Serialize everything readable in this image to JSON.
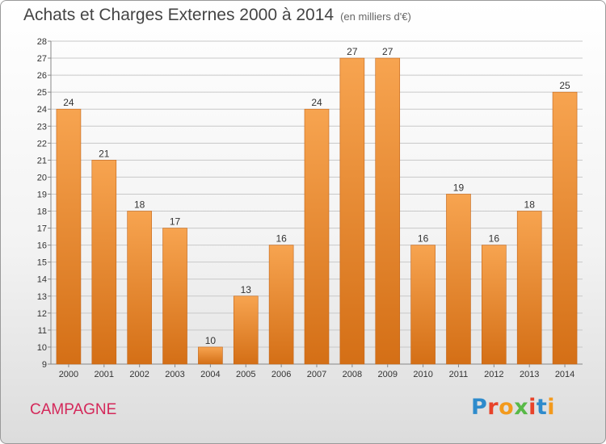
{
  "header": {
    "title": "Achats et Charges Externes 2000 à 2014",
    "unit_note": "(en milliers d'€)"
  },
  "footer": {
    "commune": "CAMPAGNE",
    "logo_text": "Proxiti",
    "logo_colors": [
      "#2e8bcc",
      "#e8432a",
      "#f39a1d",
      "#58b947",
      "#e8432a",
      "#2e8bcc",
      "#f39a1d"
    ]
  },
  "colors": {
    "bar_light": "#f7a450",
    "bar_dark": "#d46f16",
    "bar_stroke": "#c2651a",
    "grid": "#c8c8c8",
    "axis_text": "#333333",
    "commune_color": "#d4285a"
  },
  "chart_data": {
    "type": "bar",
    "categories": [
      "2000",
      "2001",
      "2002",
      "2003",
      "2004",
      "2005",
      "2006",
      "2007",
      "2008",
      "2009",
      "2010",
      "2011",
      "2012",
      "2013",
      "2014"
    ],
    "values": [
      24,
      21,
      18,
      17,
      10,
      13,
      16,
      24,
      27,
      27,
      16,
      19,
      16,
      18,
      25
    ],
    "ylim": [
      9,
      28
    ],
    "yticks": [
      9,
      10,
      11,
      12,
      13,
      14,
      15,
      16,
      17,
      18,
      19,
      20,
      21,
      22,
      23,
      24,
      25,
      26,
      27,
      28
    ],
    "grid": true,
    "data_labels": true,
    "xlabel": "",
    "ylabel": ""
  }
}
